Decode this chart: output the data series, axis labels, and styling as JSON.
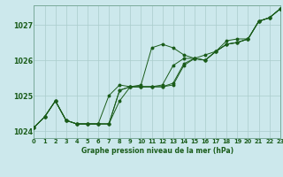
{
  "bg_color": "#cce8ec",
  "grid_color": "#aacccc",
  "line_color": "#1a5c1a",
  "marker_color": "#1a5c1a",
  "title": "Graphe pression niveau de la mer (hPa)",
  "xlim": [
    0,
    23
  ],
  "ylim": [
    1023.8,
    1027.55
  ],
  "yticks": [
    1024,
    1025,
    1026,
    1027
  ],
  "xtick_labels": [
    "0",
    "1",
    "2",
    "3",
    "4",
    "5",
    "6",
    "7",
    "8",
    "9",
    "10",
    "11",
    "12",
    "13",
    "14",
    "15",
    "16",
    "17",
    "18",
    "19",
    "20",
    "21",
    "22",
    "23"
  ],
  "series": [
    [
      1024.1,
      1024.4,
      1024.85,
      1024.3,
      1024.2,
      1024.2,
      1024.2,
      1024.2,
      1024.85,
      1025.25,
      1025.3,
      1026.35,
      1026.45,
      1026.35,
      1026.15,
      1026.05,
      1026.0,
      1026.25,
      1026.45,
      1026.5,
      1026.6,
      1027.1,
      1027.2,
      1027.45
    ],
    [
      1024.1,
      1024.4,
      1024.85,
      1024.3,
      1024.2,
      1024.2,
      1024.2,
      1024.2,
      1025.15,
      1025.25,
      1025.25,
      1025.25,
      1025.25,
      1025.3,
      1025.85,
      1026.05,
      1026.0,
      1026.25,
      1026.45,
      1026.5,
      1026.6,
      1027.1,
      1027.2,
      1027.45
    ],
    [
      1024.1,
      1024.4,
      1024.85,
      1024.3,
      1024.2,
      1024.2,
      1024.2,
      1024.2,
      1025.15,
      1025.25,
      1025.25,
      1025.25,
      1025.25,
      1025.35,
      1025.9,
      1026.05,
      1026.0,
      1026.25,
      1026.45,
      1026.5,
      1026.6,
      1027.1,
      1027.2,
      1027.45
    ],
    [
      1024.1,
      1024.4,
      1024.85,
      1024.3,
      1024.2,
      1024.2,
      1024.2,
      1025.0,
      1025.3,
      1025.25,
      1025.25,
      1025.25,
      1025.3,
      1025.85,
      1026.05,
      1026.05,
      1026.15,
      1026.25,
      1026.55,
      1026.6,
      1026.6,
      1027.1,
      1027.2,
      1027.45
    ]
  ]
}
